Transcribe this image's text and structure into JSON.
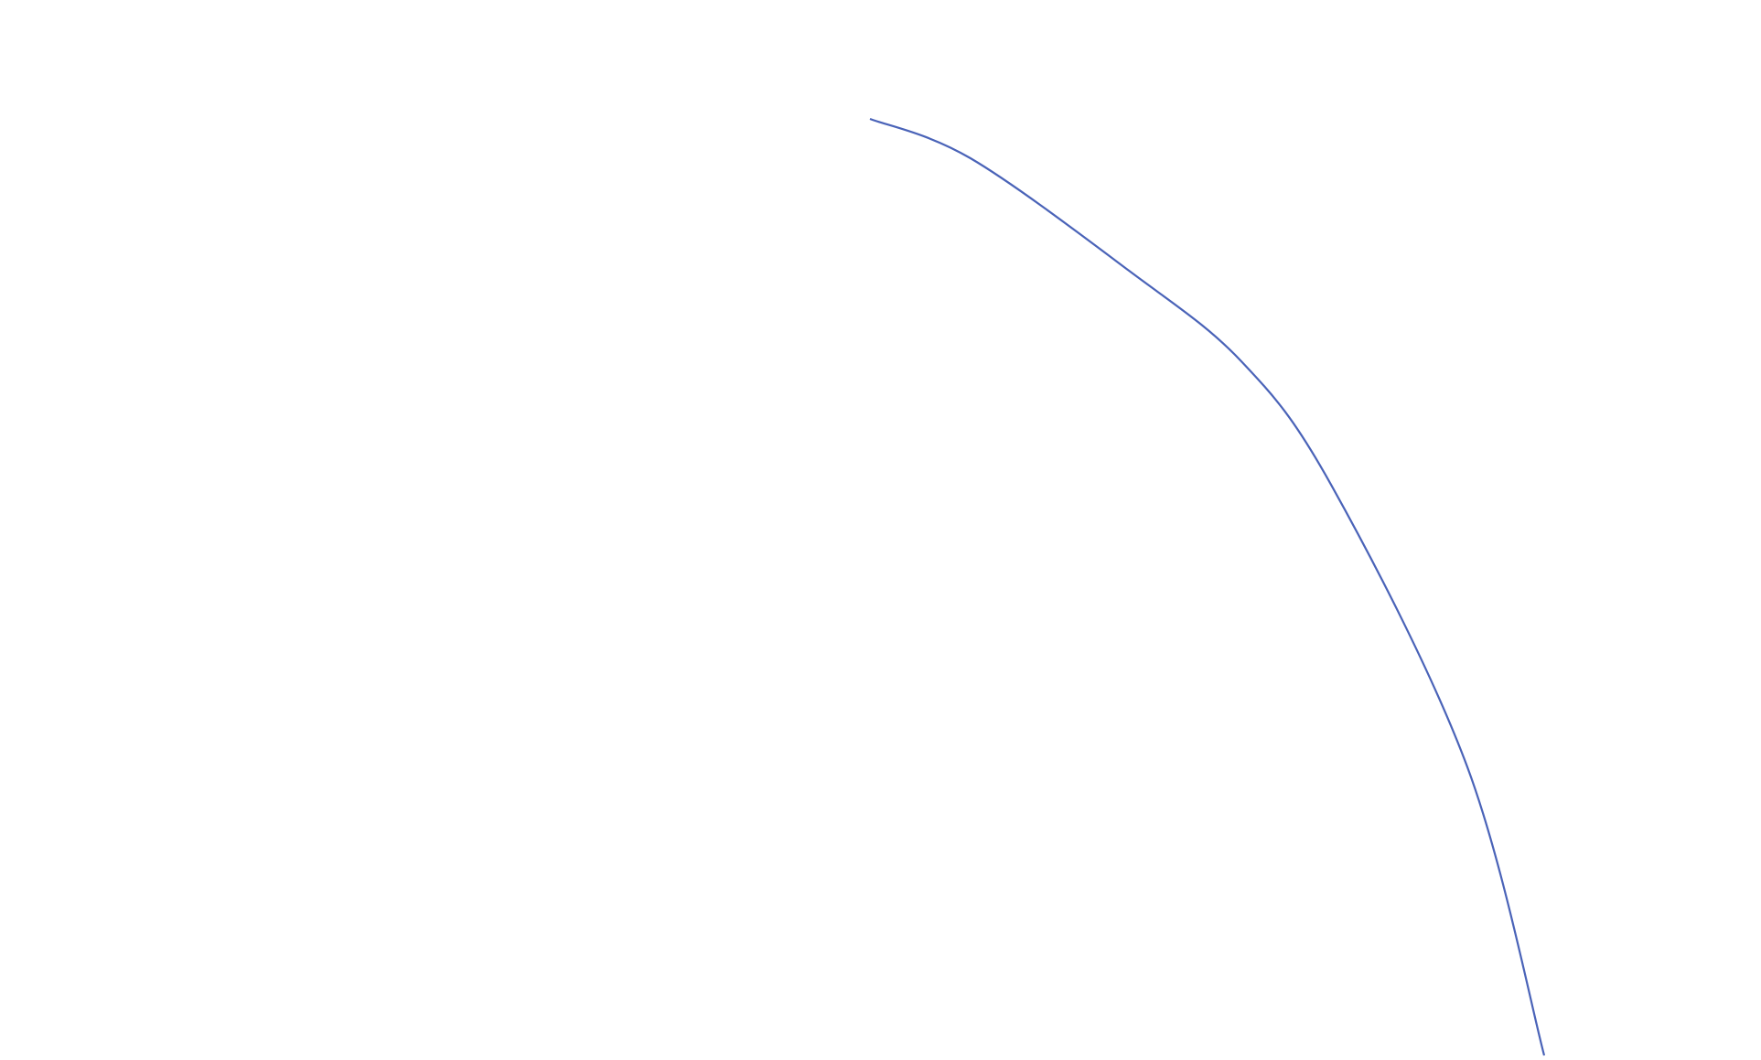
{
  "chart_data": {
    "type": "line",
    "title": "",
    "xlabel": "",
    "ylabel": "",
    "axes_visible": false,
    "grid": false,
    "legend": "none",
    "xlim": [
      0,
      100
    ],
    "ylim": [
      0,
      100
    ],
    "series": [
      {
        "color": "#4a63b8",
        "x": [
          0,
          14.9,
          38.4,
          55.1,
          68.5,
          88.6,
          100
        ],
        "y": [
          100,
          95.8,
          83.8,
          74.1,
          60.8,
          30.8,
          0
        ]
      }
    ]
  }
}
